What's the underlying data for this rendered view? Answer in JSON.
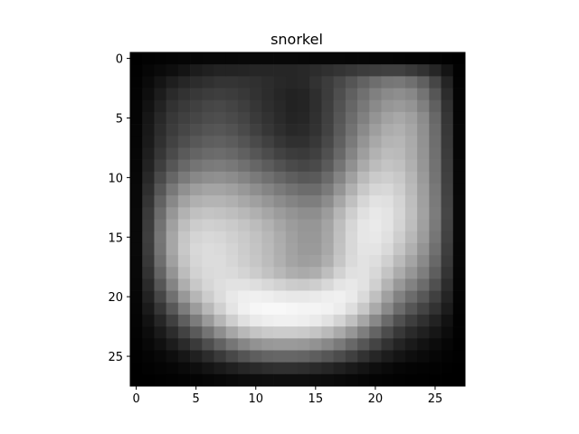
{
  "chart_data": {
    "type": "heatmap",
    "title": "snorkel",
    "colormap": "gray",
    "grid": false,
    "xlim": [
      -0.5,
      27.5
    ],
    "ylim": [
      27.5,
      -0.5
    ],
    "xticks": [
      0,
      5,
      10,
      15,
      20,
      25
    ],
    "yticks": [
      0,
      5,
      10,
      15,
      20,
      25
    ],
    "xtick_labels": [
      "0",
      "5",
      "10",
      "15",
      "20",
      "25"
    ],
    "ytick_labels": [
      "0",
      "5",
      "10",
      "15",
      "20",
      "25"
    ],
    "rows": 28,
    "cols": 28,
    "value_range": [
      0,
      255
    ],
    "values": [
      [
        0,
        2,
        3,
        4,
        5,
        6,
        7,
        7,
        7,
        8,
        8,
        8,
        8,
        8,
        7,
        7,
        7,
        7,
        6,
        6,
        5,
        5,
        4,
        3,
        3,
        2,
        1,
        0
      ],
      [
        1,
        6,
        10,
        14,
        20,
        28,
        32,
        35,
        35,
        36,
        38,
        38,
        38,
        38,
        40,
        44,
        48,
        52,
        56,
        60,
        62,
        64,
        64,
        58,
        50,
        38,
        20,
        2
      ],
      [
        2,
        10,
        20,
        30,
        38,
        44,
        48,
        52,
        52,
        50,
        48,
        44,
        40,
        38,
        40,
        50,
        60,
        72,
        85,
        98,
        110,
        118,
        120,
        112,
        96,
        70,
        36,
        3
      ],
      [
        3,
        14,
        28,
        42,
        50,
        56,
        60,
        62,
        60,
        56,
        50,
        44,
        38,
        34,
        36,
        46,
        60,
        78,
        96,
        112,
        128,
        138,
        142,
        136,
        116,
        86,
        44,
        4
      ],
      [
        4,
        18,
        34,
        50,
        58,
        64,
        70,
        72,
        68,
        62,
        54,
        46,
        40,
        34,
        36,
        46,
        62,
        82,
        102,
        120,
        138,
        150,
        154,
        148,
        128,
        96,
        50,
        5
      ],
      [
        4,
        22,
        40,
        56,
        64,
        70,
        76,
        78,
        74,
        68,
        58,
        50,
        42,
        36,
        38,
        48,
        64,
        86,
        108,
        128,
        148,
        162,
        168,
        160,
        140,
        104,
        54,
        5
      ],
      [
        5,
        24,
        44,
        60,
        70,
        78,
        84,
        86,
        82,
        74,
        64,
        54,
        46,
        40,
        42,
        50,
        66,
        90,
        114,
        138,
        158,
        172,
        176,
        166,
        144,
        108,
        56,
        6
      ],
      [
        5,
        26,
        48,
        66,
        78,
        88,
        94,
        96,
        92,
        84,
        74,
        64,
        54,
        48,
        48,
        56,
        72,
        96,
        122,
        148,
        168,
        180,
        182,
        170,
        146,
        110,
        58,
        6
      ],
      [
        6,
        30,
        54,
        74,
        90,
        100,
        106,
        108,
        104,
        96,
        86,
        76,
        66,
        60,
        58,
        64,
        80,
        104,
        132,
        158,
        178,
        188,
        186,
        172,
        148,
        112,
        60,
        6
      ],
      [
        6,
        34,
        62,
        86,
        104,
        116,
        122,
        124,
        120,
        112,
        102,
        92,
        82,
        74,
        70,
        74,
        90,
        116,
        144,
        170,
        188,
        196,
        192,
        176,
        150,
        114,
        62,
        7
      ],
      [
        7,
        40,
        74,
        102,
        122,
        136,
        142,
        144,
        140,
        132,
        122,
        112,
        102,
        94,
        88,
        90,
        106,
        132,
        160,
        186,
        202,
        206,
        200,
        182,
        154,
        116,
        64,
        7
      ],
      [
        8,
        46,
        86,
        120,
        144,
        158,
        164,
        164,
        160,
        152,
        142,
        132,
        122,
        114,
        108,
        108,
        122,
        148,
        176,
        200,
        214,
        216,
        206,
        186,
        158,
        120,
        66,
        7
      ],
      [
        8,
        52,
        98,
        136,
        162,
        176,
        180,
        180,
        176,
        168,
        160,
        150,
        140,
        132,
        126,
        126,
        140,
        166,
        192,
        214,
        226,
        224,
        212,
        190,
        160,
        122,
        68,
        8
      ],
      [
        9,
        58,
        108,
        150,
        178,
        192,
        196,
        194,
        190,
        184,
        176,
        166,
        156,
        148,
        142,
        142,
        156,
        182,
        206,
        224,
        232,
        228,
        214,
        192,
        162,
        124,
        70,
        8
      ],
      [
        9,
        60,
        114,
        160,
        190,
        204,
        208,
        206,
        202,
        196,
        188,
        178,
        166,
        156,
        150,
        150,
        164,
        190,
        214,
        230,
        234,
        228,
        212,
        190,
        160,
        122,
        68,
        8
      ],
      [
        9,
        62,
        118,
        166,
        198,
        212,
        216,
        214,
        208,
        202,
        194,
        184,
        172,
        160,
        152,
        152,
        166,
        192,
        216,
        230,
        232,
        224,
        206,
        184,
        156,
        118,
        66,
        8
      ],
      [
        9,
        60,
        116,
        166,
        200,
        216,
        220,
        218,
        212,
        204,
        196,
        186,
        174,
        162,
        154,
        154,
        168,
        194,
        216,
        228,
        228,
        218,
        198,
        176,
        148,
        112,
        62,
        7
      ],
      [
        8,
        56,
        110,
        160,
        196,
        214,
        220,
        220,
        214,
        206,
        198,
        188,
        176,
        164,
        158,
        160,
        174,
        198,
        218,
        226,
        222,
        208,
        186,
        164,
        138,
        104,
        58,
        7
      ],
      [
        8,
        50,
        100,
        148,
        188,
        210,
        218,
        220,
        218,
        212,
        204,
        194,
        184,
        174,
        170,
        174,
        190,
        210,
        224,
        226,
        216,
        196,
        172,
        150,
        126,
        94,
        52,
        6
      ],
      [
        7,
        42,
        86,
        132,
        174,
        200,
        214,
        222,
        226,
        226,
        222,
        216,
        210,
        204,
        202,
        206,
        216,
        228,
        232,
        226,
        208,
        180,
        152,
        130,
        108,
        80,
        44,
        5
      ],
      [
        6,
        34,
        70,
        112,
        152,
        182,
        204,
        220,
        232,
        238,
        240,
        238,
        234,
        232,
        232,
        234,
        238,
        240,
        234,
        218,
        192,
        160,
        130,
        108,
        88,
        64,
        36,
        4
      ],
      [
        5,
        26,
        54,
        88,
        124,
        156,
        184,
        208,
        228,
        240,
        246,
        248,
        248,
        246,
        244,
        244,
        242,
        236,
        222,
        200,
        170,
        138,
        108,
        86,
        68,
        50,
        28,
        3
      ],
      [
        4,
        18,
        38,
        64,
        94,
        124,
        154,
        182,
        206,
        224,
        234,
        238,
        240,
        240,
        238,
        234,
        226,
        212,
        192,
        166,
        136,
        106,
        80,
        62,
        48,
        34,
        18,
        2
      ],
      [
        3,
        12,
        26,
        44,
        66,
        90,
        116,
        142,
        166,
        184,
        196,
        202,
        204,
        204,
        202,
        196,
        186,
        170,
        150,
        126,
        100,
        76,
        56,
        42,
        32,
        22,
        12,
        2
      ],
      [
        2,
        8,
        16,
        28,
        42,
        58,
        78,
        98,
        118,
        134,
        146,
        152,
        154,
        154,
        152,
        146,
        136,
        122,
        104,
        86,
        68,
        50,
        36,
        26,
        18,
        12,
        6,
        1
      ],
      [
        1,
        4,
        8,
        14,
        22,
        32,
        44,
        58,
        72,
        84,
        94,
        100,
        102,
        102,
        100,
        94,
        86,
        76,
        64,
        50,
        38,
        28,
        20,
        14,
        10,
        6,
        3,
        1
      ],
      [
        0,
        2,
        4,
        6,
        10,
        14,
        20,
        26,
        32,
        38,
        42,
        46,
        48,
        48,
        46,
        42,
        38,
        32,
        26,
        20,
        14,
        10,
        6,
        4,
        3,
        2,
        1,
        0
      ],
      [
        0,
        0,
        1,
        2,
        3,
        4,
        6,
        8,
        10,
        12,
        13,
        14,
        14,
        14,
        14,
        13,
        12,
        10,
        8,
        6,
        4,
        3,
        2,
        1,
        1,
        0,
        0,
        0
      ]
    ]
  }
}
